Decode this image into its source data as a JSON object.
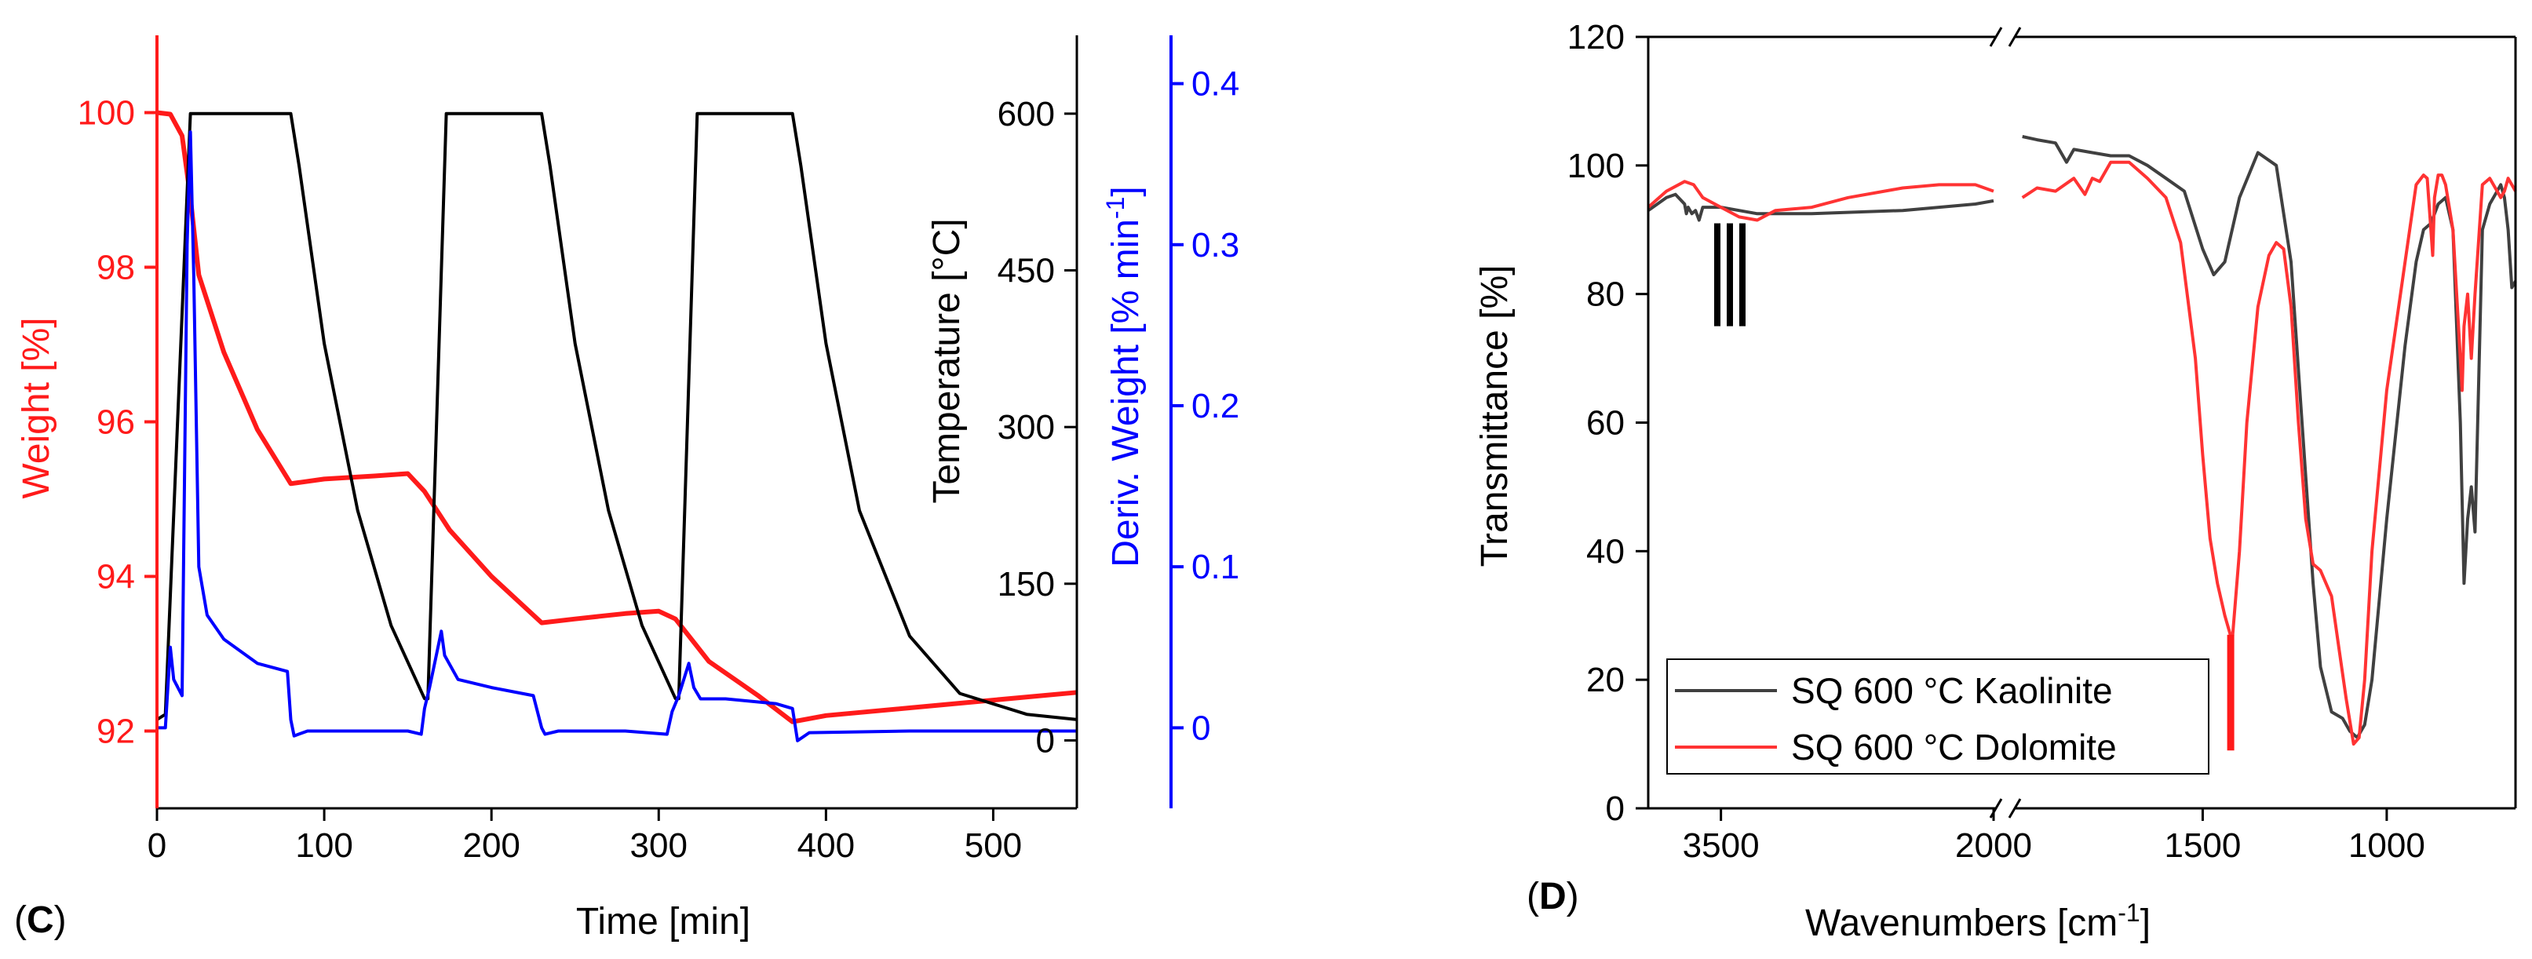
{
  "panel_c": {
    "panel_label": "C",
    "xlabel": "Time [min]",
    "ylabel_left": "Weight [%]",
    "ylabel_temp": "Temperature [°C]",
    "ylabel_deriv_main": "Deriv. Weight [% min",
    "ylabel_deriv_sup": "-1",
    "ylabel_deriv_end": "]"
  },
  "panel_d": {
    "panel_label": "D",
    "xlabel_main": "Wavenumbers [cm",
    "xlabel_sup": "-1",
    "xlabel_end": "]",
    "ylabel": "Transmittance [%]"
  },
  "colors": {
    "weight": "#ff1a1a",
    "temperature": "#000000",
    "deriv": "#0000ff",
    "kaolinite": "#404040",
    "dolomite": "#ff3333"
  },
  "chart_data": [
    {
      "type": "line",
      "panel": "C",
      "x_axis": {
        "label": "Time [min]",
        "range": [
          0,
          550
        ],
        "ticks": [
          0,
          100,
          200,
          300,
          400,
          500
        ]
      },
      "y_axes": [
        {
          "label": "Weight [%]",
          "range": [
            91,
            101
          ],
          "ticks": [
            92,
            94,
            96,
            98,
            100
          ],
          "color": "#ff1a1a",
          "side": "left"
        },
        {
          "label": "Temperature [°C]",
          "range": [
            -65,
            675
          ],
          "ticks": [
            0,
            150,
            300,
            450,
            600
          ],
          "color": "#000000",
          "side": "right-inner"
        },
        {
          "label": "Deriv. Weight [% min-1]",
          "range": [
            -0.05,
            0.43
          ],
          "ticks": [
            0.0,
            0.1,
            0.2,
            0.3,
            0.4
          ],
          "color": "#0000ff",
          "side": "right-outer"
        }
      ],
      "series": [
        {
          "name": "Weight",
          "axis": 0,
          "color": "#ff1a1a",
          "x": [
            0,
            8,
            15,
            20,
            25,
            40,
            60,
            80,
            100,
            130,
            150,
            160,
            175,
            200,
            230,
            250,
            280,
            300,
            310,
            330,
            360,
            380,
            400,
            450,
            500,
            550
          ],
          "y": [
            100,
            99.98,
            99.7,
            98.9,
            97.9,
            96.9,
            95.9,
            95.2,
            95.26,
            95.3,
            95.33,
            95.1,
            94.6,
            94.0,
            93.4,
            93.45,
            93.52,
            93.55,
            93.45,
            92.9,
            92.45,
            92.12,
            92.2,
            92.3,
            92.4,
            92.5
          ]
        },
        {
          "name": "Temperature",
          "axis": 1,
          "color": "#000000",
          "x": [
            0,
            5,
            20,
            40,
            60,
            80,
            85,
            100,
            120,
            140,
            160,
            162,
            173,
            180,
            200,
            220,
            230,
            235,
            250,
            270,
            290,
            310,
            312,
            323,
            340,
            360,
            380,
            385,
            400,
            420,
            450,
            480,
            520,
            550
          ],
          "y": [
            20,
            25,
            600,
            600,
            600,
            600,
            550,
            380,
            220,
            110,
            40,
            40,
            600,
            600,
            600,
            600,
            600,
            550,
            380,
            220,
            110,
            40,
            40,
            600,
            600,
            600,
            600,
            550,
            380,
            220,
            100,
            45,
            25,
            20
          ]
        },
        {
          "name": "Deriv. Weight",
          "axis": 2,
          "color": "#0000ff",
          "x": [
            0,
            5,
            8,
            10,
            15,
            18,
            20,
            22,
            25,
            30,
            40,
            60,
            78,
            80,
            82,
            90,
            120,
            150,
            158,
            160,
            163,
            170,
            172,
            180,
            200,
            225,
            230,
            232,
            240,
            280,
            305,
            308,
            312,
            318,
            321,
            325,
            340,
            370,
            380,
            383,
            390,
            450,
            550
          ],
          "y": [
            0.0,
            0.0,
            0.05,
            0.03,
            0.02,
            0.3,
            0.37,
            0.28,
            0.1,
            0.07,
            0.055,
            0.04,
            0.035,
            0.005,
            -0.005,
            -0.002,
            -0.002,
            -0.002,
            -0.004,
            0.012,
            0.025,
            0.06,
            0.045,
            0.03,
            0.025,
            0.02,
            0.0,
            -0.004,
            -0.002,
            -0.002,
            -0.004,
            0.01,
            0.02,
            0.04,
            0.025,
            0.018,
            0.018,
            0.015,
            0.012,
            -0.008,
            -0.003,
            -0.002,
            -0.002
          ]
        }
      ]
    },
    {
      "type": "line",
      "panel": "D",
      "x_axis": {
        "label": "Wavenumbers [cm-1]",
        "reversed": true,
        "broken": true,
        "segments": [
          {
            "range": [
              3900,
              2000
            ],
            "ticks": [
              3500,
              2000
            ]
          },
          {
            "range": [
              2000,
              650
            ],
            "ticks": [
              1500,
              1000
            ]
          }
        ]
      },
      "y_axis": {
        "label": "Transmittance [%]",
        "range": [
          0,
          120
        ],
        "ticks": [
          0,
          20,
          40,
          60,
          80,
          100,
          120
        ]
      },
      "legend": {
        "placement": "bottom-left",
        "entries": [
          "SQ 600 °C Kaolinite",
          "SQ 600 °C Dolomite"
        ]
      },
      "series": [
        {
          "name": "SQ 600 °C Kaolinite",
          "color": "#404040",
          "x": [
            3900,
            3800,
            3750,
            3700,
            3690,
            3680,
            3660,
            3640,
            3620,
            3600,
            3500,
            3400,
            3300,
            3000,
            2500,
            2100,
            2000,
            1990,
            1950,
            1900,
            1870,
            1850,
            1800,
            1750,
            1700,
            1650,
            1600,
            1550,
            1500,
            1470,
            1440,
            1400,
            1350,
            1300,
            1260,
            1230,
            1200,
            1180,
            1150,
            1120,
            1100,
            1080,
            1060,
            1040,
            1000,
            950,
            920,
            900,
            880,
            860,
            840,
            820,
            800,
            790,
            780,
            770,
            760,
            740,
            720,
            700,
            690,
            680,
            670,
            660,
            650
          ],
          "y": [
            93,
            95,
            95.5,
            94,
            92.5,
            93.5,
            92.5,
            93,
            91.5,
            93.5,
            93.5,
            93,
            92.5,
            92.5,
            93,
            94,
            94.5,
            104.5,
            104,
            103.5,
            100.5,
            102.5,
            102,
            101.5,
            101.5,
            100,
            98,
            96,
            87,
            83,
            85,
            95,
            102,
            100,
            85,
            60,
            35,
            22,
            15,
            14,
            12,
            11,
            13,
            20,
            45,
            72,
            85,
            90,
            91,
            94,
            95,
            90,
            60,
            35,
            45,
            50,
            43,
            90,
            94,
            96,
            97,
            95,
            90,
            81,
            82
          ]
        },
        {
          "name": "SQ 600 °C Dolomite",
          "color": "#ff3333",
          "x": [
            3900,
            3800,
            3700,
            3650,
            3600,
            3500,
            3400,
            3300,
            3200,
            3000,
            2800,
            2500,
            2300,
            2100,
            2000,
            1990,
            1950,
            1900,
            1850,
            1820,
            1800,
            1780,
            1750,
            1700,
            1650,
            1600,
            1560,
            1520,
            1500,
            1480,
            1460,
            1440,
            1420,
            1400,
            1380,
            1350,
            1320,
            1300,
            1280,
            1260,
            1240,
            1220,
            1200,
            1180,
            1150,
            1130,
            1110,
            1090,
            1075,
            1060,
            1040,
            1000,
            950,
            920,
            900,
            890,
            880,
            875,
            870,
            860,
            850,
            840,
            820,
            810,
            800,
            795,
            790,
            780,
            770,
            760,
            740,
            720,
            700,
            690,
            680,
            670,
            660,
            650
          ],
          "y": [
            93.5,
            96,
            97.5,
            97,
            95,
            93.5,
            92,
            91.5,
            93,
            93.5,
            95,
            96.5,
            97,
            97,
            96,
            95,
            96.5,
            96,
            98,
            95.5,
            98,
            97.5,
            100.5,
            100.5,
            98,
            95,
            88,
            70,
            55,
            42,
            35,
            30,
            26,
            40,
            60,
            78,
            86,
            88,
            87,
            78,
            60,
            45,
            38,
            37,
            33,
            25,
            17,
            10,
            11,
            20,
            40,
            65,
            85,
            97,
            98.5,
            98,
            90,
            86,
            95,
            98.5,
            98.5,
            97,
            90,
            80,
            70,
            65,
            75,
            80,
            70,
            80,
            97,
            98,
            96,
            95,
            96,
            98,
            97,
            96
          ]
        }
      ]
    }
  ]
}
